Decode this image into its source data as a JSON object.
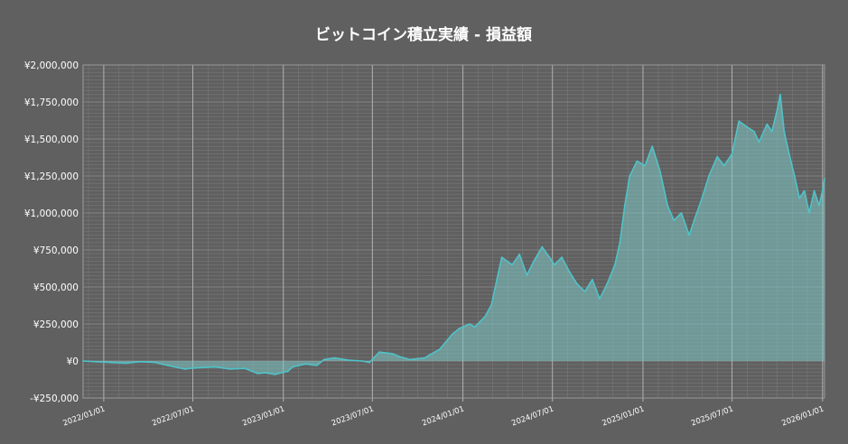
{
  "chart_data": {
    "type": "area",
    "title": "ビットコイン積立実績 - 損益額",
    "xlabel": "",
    "ylabel": "",
    "x_range": [
      "2021-11-20",
      "2026-01-05"
    ],
    "ylim": [
      -250000,
      2000000
    ],
    "y_ticks": [
      -250000,
      0,
      250000,
      500000,
      750000,
      1000000,
      1250000,
      1500000,
      1750000,
      2000000
    ],
    "y_tick_labels": [
      "-¥250,000",
      "¥0",
      "¥250,000",
      "¥500,000",
      "¥750,000",
      "¥1,000,000",
      "¥1,250,000",
      "¥1,500,000",
      "¥1,750,000",
      "¥2,000,000"
    ],
    "x_ticks": [
      "2022-01-01",
      "2022-07-01",
      "2023-01-01",
      "2023-07-01",
      "2024-01-01",
      "2024-07-01",
      "2025-01-01",
      "2025-07-01",
      "2026-01-01"
    ],
    "x_tick_labels": [
      "2022/01/01",
      "2022/07/01",
      "2023/01/01",
      "2023/07/01",
      "2024/01/01",
      "2024/07/01",
      "2025/01/01",
      "2025/07/01",
      "2026/01/01"
    ],
    "grid": true,
    "legend": "none",
    "colors": {
      "background": "#606060",
      "line": "#4fc3c9",
      "fill": "#7cc7c4",
      "grid": "#8a8a8a",
      "text": "#ffffff"
    },
    "series": [
      {
        "x": [
          "2021-11-20",
          "2021-12-15",
          "2022-01-15",
          "2022-02-15",
          "2022-03-15",
          "2022-04-15",
          "2022-05-10",
          "2022-05-25",
          "2022-06-15",
          "2022-06-25",
          "2022-07-15",
          "2022-08-15",
          "2022-09-15",
          "2022-10-15",
          "2022-11-10",
          "2022-11-25",
          "2022-12-15",
          "2023-01-10",
          "2023-01-20",
          "2023-02-15",
          "2023-03-10",
          "2023-03-25",
          "2023-04-15",
          "2023-05-15",
          "2023-06-10",
          "2023-06-25",
          "2023-07-15",
          "2023-08-10",
          "2023-08-25",
          "2023-09-15",
          "2023-10-15",
          "2023-10-25",
          "2023-11-15",
          "2023-12-10",
          "2023-12-25",
          "2024-01-15",
          "2024-01-25",
          "2024-02-15",
          "2024-02-28",
          "2024-03-10",
          "2024-03-20",
          "2024-04-10",
          "2024-04-25",
          "2024-05-10",
          "2024-05-25",
          "2024-06-10",
          "2024-06-25",
          "2024-07-05",
          "2024-07-20",
          "2024-08-05",
          "2024-08-20",
          "2024-09-05",
          "2024-09-20",
          "2024-10-05",
          "2024-10-20",
          "2024-11-05",
          "2024-11-15",
          "2024-11-25",
          "2024-12-05",
          "2024-12-20",
          "2025-01-05",
          "2025-01-20",
          "2025-02-05",
          "2025-02-20",
          "2025-03-05",
          "2025-03-20",
          "2025-04-05",
          "2025-04-15",
          "2025-05-01",
          "2025-05-15",
          "2025-06-01",
          "2025-06-15",
          "2025-07-01",
          "2025-07-15",
          "2025-08-01",
          "2025-08-15",
          "2025-08-25",
          "2025-09-10",
          "2025-09-20",
          "2025-10-01",
          "2025-10-07",
          "2025-10-15",
          "2025-10-25",
          "2025-11-05",
          "2025-11-15",
          "2025-11-25",
          "2025-12-05",
          "2025-12-15",
          "2025-12-25",
          "2026-01-01",
          "2026-01-05"
        ],
        "y": [
          0,
          -5000,
          -10000,
          -15000,
          -5000,
          -10000,
          -30000,
          -40000,
          -55000,
          -50000,
          -45000,
          -40000,
          -55000,
          -50000,
          -85000,
          -80000,
          -90000,
          -70000,
          -40000,
          -20000,
          -30000,
          10000,
          20000,
          5000,
          0,
          -10000,
          60000,
          50000,
          30000,
          10000,
          20000,
          40000,
          80000,
          180000,
          220000,
          250000,
          230000,
          300000,
          380000,
          550000,
          700000,
          650000,
          720000,
          580000,
          680000,
          770000,
          700000,
          650000,
          700000,
          600000,
          520000,
          470000,
          550000,
          420000,
          520000,
          650000,
          800000,
          1050000,
          1250000,
          1350000,
          1320000,
          1450000,
          1280000,
          1050000,
          950000,
          1000000,
          850000,
          950000,
          1100000,
          1250000,
          1380000,
          1320000,
          1400000,
          1620000,
          1580000,
          1550000,
          1480000,
          1600000,
          1550000,
          1700000,
          1800000,
          1550000,
          1400000,
          1250000,
          1100000,
          1150000,
          1000000,
          1150000,
          1050000,
          1150000,
          1230000
        ]
      }
    ]
  }
}
